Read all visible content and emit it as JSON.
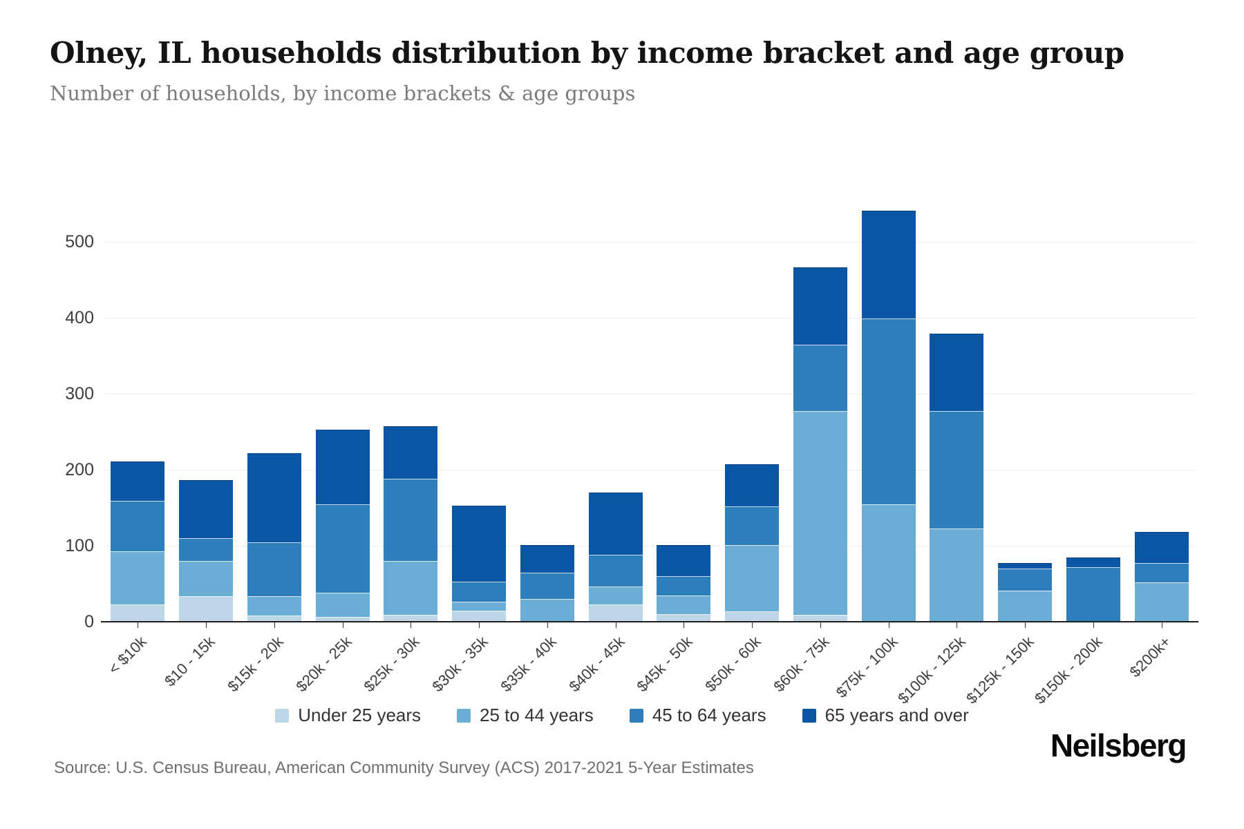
{
  "header": {
    "title": "Olney, IL households distribution by income bracket and age group",
    "subtitle": "Number of households, by income brackets & age groups"
  },
  "chart_data": {
    "type": "bar",
    "stacked": true,
    "title": "Olney, IL households distribution by income bracket and age group",
    "xlabel": "",
    "ylabel": "",
    "categories": [
      "< $10k",
      "$10 - 15k",
      "$15k - 20k",
      "$20k - 25k",
      "$25k - 30k",
      "$30k - 35k",
      "$35k - 40k",
      "$40k - 45k",
      "$45k - 50k",
      "$50k - 60k",
      "$60k - 75k",
      "$75k - 100k",
      "$100k - 125k",
      "$125k - 150k",
      "$150k - 200k",
      "$200k+"
    ],
    "series": [
      {
        "name": "Under 25 years",
        "color": "#bdd7e8",
        "values": [
          23,
          34,
          8,
          6,
          9,
          15,
          0,
          23,
          10,
          14,
          9,
          0,
          0,
          0,
          0,
          0
        ]
      },
      {
        "name": "25 to 44 years",
        "color": "#6aaed6",
        "values": [
          70,
          46,
          26,
          32,
          71,
          11,
          30,
          23,
          25,
          87,
          268,
          155,
          123,
          41,
          0,
          52
        ]
      },
      {
        "name": "45 to 64 years",
        "color": "#2e7ebc",
        "values": [
          66,
          30,
          71,
          117,
          108,
          27,
          35,
          42,
          25,
          51,
          88,
          244,
          154,
          29,
          72,
          25
        ]
      },
      {
        "name": "65 years and over",
        "color": "#0a56a4",
        "values": [
          52,
          76,
          117,
          98,
          69,
          100,
          36,
          82,
          41,
          55,
          101,
          142,
          102,
          7,
          13,
          41
        ]
      }
    ],
    "totals": [
      211,
      186,
      222,
      253,
      257,
      153,
      101,
      170,
      101,
      207,
      466,
      541,
      379,
      77,
      85,
      118
    ],
    "yticks": [
      0,
      100,
      200,
      300,
      400,
      500
    ],
    "ylim": [
      0,
      560
    ],
    "grid": "horizontal",
    "legend_position": "bottom"
  },
  "footer": {
    "source": "Source: U.S. Census Bureau, American Community Survey (ACS) 2017-2021 5-Year Estimates",
    "logo": "Neilsberg"
  }
}
